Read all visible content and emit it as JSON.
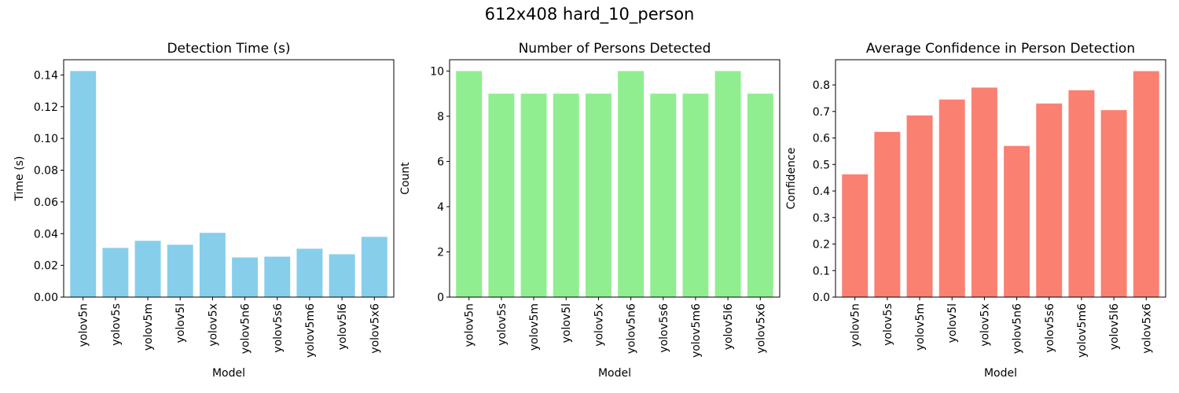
{
  "figure_title": "612x408 hard_10_person",
  "colors": {
    "time": "#87ceeb",
    "count": "#90ee90",
    "confidence": "#fa8072"
  },
  "chart_data": [
    {
      "type": "bar",
      "title": "Detection Time (s)",
      "xlabel": "Model",
      "ylabel": "Time (s)",
      "categories": [
        "yolov5n",
        "yolov5s",
        "yolov5m",
        "yolov5l",
        "yolov5x",
        "yolov5n6",
        "yolov5s6",
        "yolov5m6",
        "yolov5l6",
        "yolov5x6"
      ],
      "values": [
        0.1425,
        0.031,
        0.0355,
        0.033,
        0.0405,
        0.025,
        0.0255,
        0.0305,
        0.027,
        0.038
      ],
      "ylim": [
        0,
        0.1496
      ],
      "yticks": [
        0.0,
        0.02,
        0.04,
        0.06,
        0.08,
        0.1,
        0.12,
        0.14
      ],
      "ytick_labels": [
        "0.00",
        "0.02",
        "0.04",
        "0.06",
        "0.08",
        "0.10",
        "0.12",
        "0.14"
      ],
      "grid": false,
      "color": "#87ceeb"
    },
    {
      "type": "bar",
      "title": "Number of Persons Detected",
      "xlabel": "Model",
      "ylabel": "Count",
      "categories": [
        "yolov5n",
        "yolov5s",
        "yolov5m",
        "yolov5l",
        "yolov5x",
        "yolov5n6",
        "yolov5s6",
        "yolov5m6",
        "yolov5l6",
        "yolov5x6"
      ],
      "values": [
        10,
        9,
        9,
        9,
        9,
        10,
        9,
        9,
        10,
        9
      ],
      "ylim": [
        0,
        10.5
      ],
      "yticks": [
        0,
        2,
        4,
        6,
        8,
        10
      ],
      "ytick_labels": [
        "0",
        "2",
        "4",
        "6",
        "8",
        "10"
      ],
      "grid": false,
      "color": "#90ee90"
    },
    {
      "type": "bar",
      "title": "Average Confidence in Person Detection",
      "xlabel": "Model",
      "ylabel": "Confidence",
      "categories": [
        "yolov5n",
        "yolov5s",
        "yolov5m",
        "yolov5l",
        "yolov5x",
        "yolov5n6",
        "yolov5s6",
        "yolov5m6",
        "yolov5l6",
        "yolov5x6"
      ],
      "values": [
        0.463,
        0.623,
        0.685,
        0.745,
        0.79,
        0.57,
        0.73,
        0.78,
        0.705,
        0.852
      ],
      "ylim": [
        0,
        0.895
      ],
      "yticks": [
        0.0,
        0.1,
        0.2,
        0.3,
        0.4,
        0.5,
        0.6,
        0.7,
        0.8
      ],
      "ytick_labels": [
        "0.0",
        "0.1",
        "0.2",
        "0.3",
        "0.4",
        "0.5",
        "0.6",
        "0.7",
        "0.8"
      ],
      "grid": false,
      "color": "#fa8072"
    }
  ]
}
